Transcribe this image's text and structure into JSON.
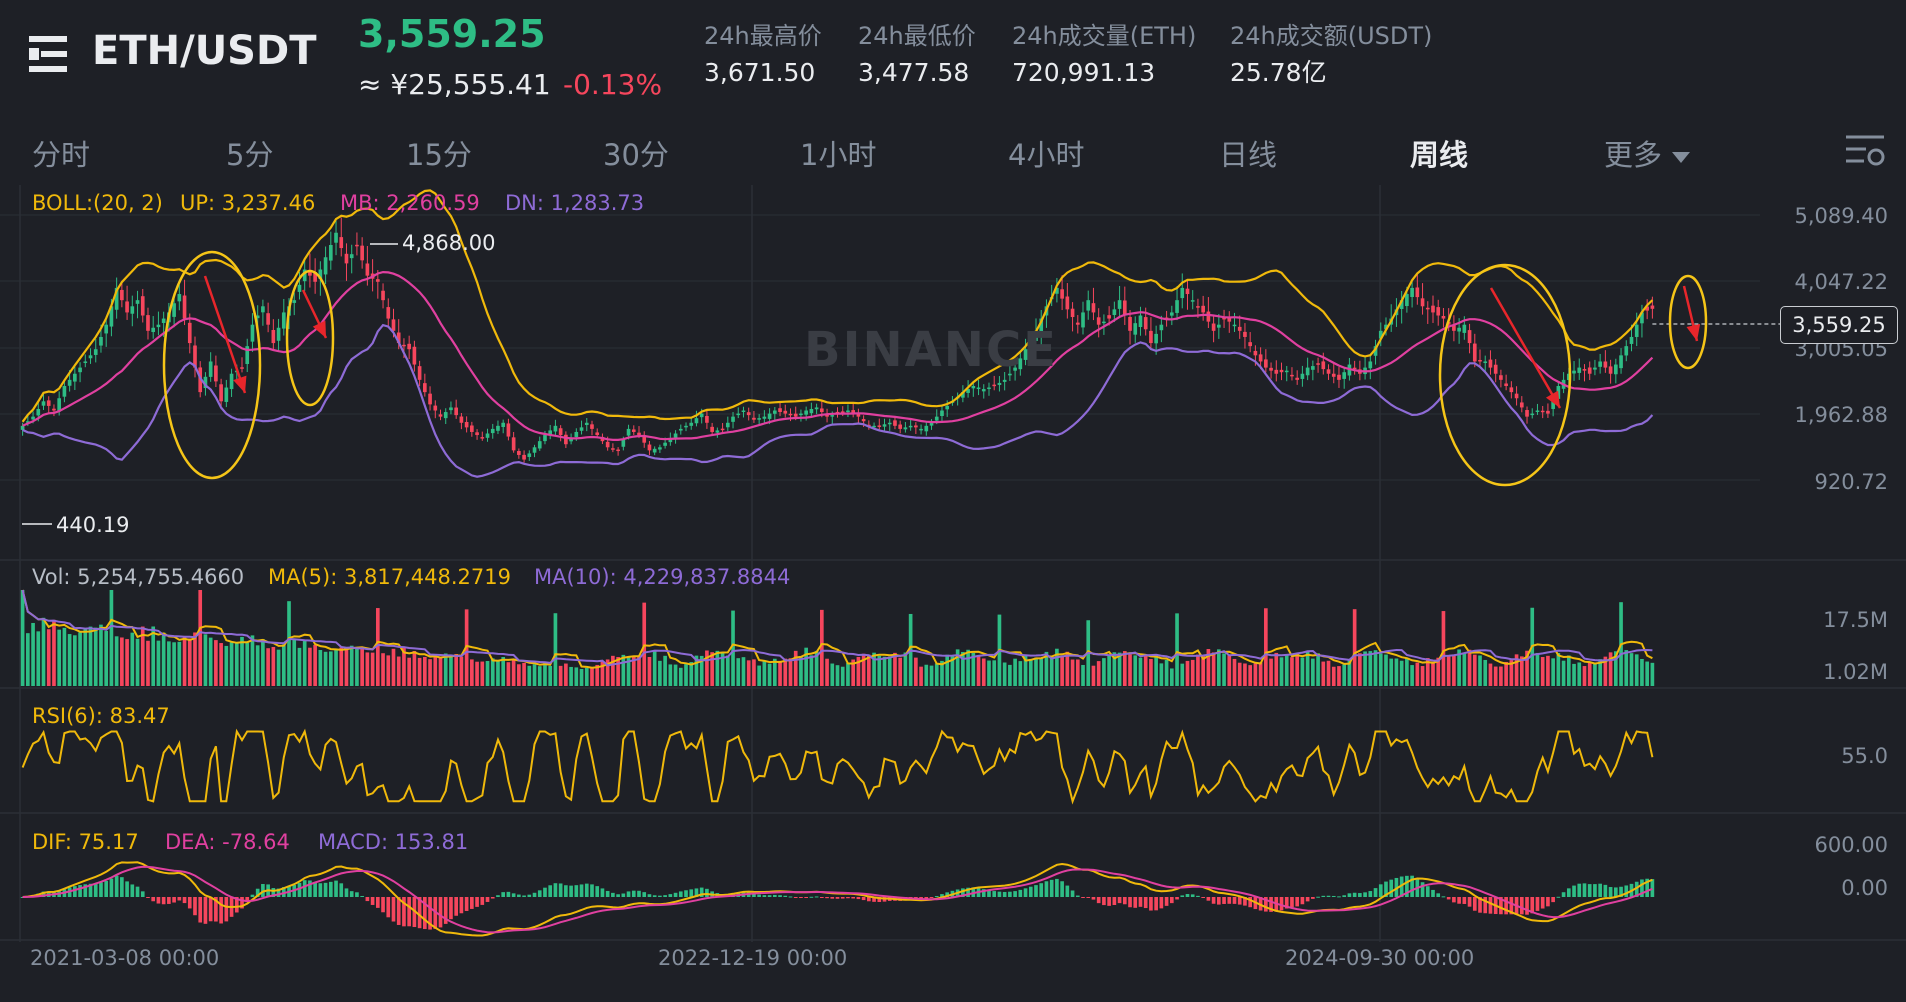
{
  "header": {
    "pair": "ETH/USDT",
    "last_price": "3,559.25",
    "cny_price": "≈ ¥25,555.41",
    "change_pct": "-0.13%",
    "stats": [
      {
        "label": "24h最高价",
        "value": "3,671.50"
      },
      {
        "label": "24h最低价",
        "value": "3,477.58"
      },
      {
        "label": "24h成交量(ETH)",
        "value": "720,991.13"
      },
      {
        "label": "24h成交额(USDT)",
        "value": "25.78亿"
      }
    ]
  },
  "tabs": [
    {
      "label": "分时",
      "active": false
    },
    {
      "label": "5分",
      "active": false
    },
    {
      "label": "15分",
      "active": false
    },
    {
      "label": "30分",
      "active": false
    },
    {
      "label": "1小时",
      "active": false
    },
    {
      "label": "4小时",
      "active": false
    },
    {
      "label": "日线",
      "active": false
    },
    {
      "label": "周线",
      "active": true
    },
    {
      "label": "更多",
      "active": false
    }
  ],
  "icons": {
    "menu": "menu-icon",
    "more": "chevron-down-icon",
    "settings": "chart-settings-icon"
  },
  "colors": {
    "up": "#2ebd85",
    "down": "#f6465d",
    "boll_up": "#f0b90b",
    "boll_mb": "#e040a0",
    "boll_dn": "#8e6bd6",
    "annotation_circle": "#f5c518",
    "annotation_arrow": "#e8262b"
  },
  "chart_data": {
    "type": "candlestick",
    "interval": "周线",
    "watermark": "BINANCE",
    "price_axis": [
      "5,089.40",
      "4,047.22",
      "3,005.05",
      "1,962.88",
      "920.72"
    ],
    "current_price_tag": "3,559.25",
    "high_marker": "4,868.00",
    "low_marker": "440.19",
    "boll": {
      "label": "BOLL:(20, 2)",
      "up": "UP: 3,237.46",
      "mb": "MB: 2,260.59",
      "dn": "DN: 1,283.73"
    },
    "volume": {
      "label": "Vol: 5,254,755.4660",
      "ma5": "MA(5): 3,817,448.2719",
      "ma10": "MA(10): 4,229,837.8844",
      "axis": [
        "17.5M",
        "1.02M"
      ]
    },
    "rsi": {
      "label": "RSI(6): 83.47",
      "axis": [
        "55.0"
      ]
    },
    "macd": {
      "dif": "DIF: 75.17",
      "dea": "DEA: -78.64",
      "macd": "MACD: 153.81",
      "axis": [
        "600.00",
        "0.00"
      ]
    },
    "x_axis_dates": [
      "2021-03-08 00:00",
      "2022-12-19 00:00",
      "2024-09-30 00:00"
    ],
    "price_anchors": [
      [
        0,
        1650
      ],
      [
        2,
        1800
      ],
      [
        4,
        2050
      ],
      [
        6,
        1900
      ],
      [
        8,
        2300
      ],
      [
        10,
        2500
      ],
      [
        12,
        2700
      ],
      [
        14,
        2900
      ],
      [
        16,
        3300
      ],
      [
        18,
        3900
      ],
      [
        20,
        3500
      ],
      [
        22,
        3700
      ],
      [
        24,
        3200
      ],
      [
        26,
        3300
      ],
      [
        28,
        3500
      ],
      [
        30,
        3800
      ],
      [
        32,
        3000
      ],
      [
        34,
        2200
      ],
      [
        36,
        2700
      ],
      [
        38,
        2050
      ],
      [
        40,
        2500
      ],
      [
        42,
        2600
      ],
      [
        44,
        3300
      ],
      [
        46,
        3600
      ],
      [
        48,
        3000
      ],
      [
        50,
        3500
      ],
      [
        52,
        3700
      ],
      [
        54,
        4200
      ],
      [
        56,
        4000
      ],
      [
        58,
        4400
      ],
      [
        60,
        4800
      ],
      [
        62,
        4300
      ],
      [
        64,
        4600
      ],
      [
        66,
        4100
      ],
      [
        68,
        4000
      ],
      [
        70,
        3400
      ],
      [
        72,
        3000
      ],
      [
        74,
        2900
      ],
      [
        76,
        2400
      ],
      [
        78,
        2000
      ],
      [
        80,
        1800
      ],
      [
        82,
        1950
      ],
      [
        84,
        1700
      ],
      [
        86,
        1550
      ],
      [
        88,
        1450
      ],
      [
        90,
        1600
      ],
      [
        92,
        1700
      ],
      [
        94,
        1250
      ],
      [
        96,
        1100
      ],
      [
        98,
        1300
      ],
      [
        100,
        1500
      ],
      [
        102,
        1650
      ],
      [
        104,
        1350
      ],
      [
        106,
        1550
      ],
      [
        108,
        1700
      ],
      [
        110,
        1500
      ],
      [
        112,
        1300
      ],
      [
        114,
        1250
      ],
      [
        116,
        1600
      ],
      [
        118,
        1500
      ],
      [
        120,
        1250
      ],
      [
        122,
        1300
      ],
      [
        124,
        1450
      ],
      [
        126,
        1600
      ],
      [
        128,
        1700
      ],
      [
        130,
        1850
      ],
      [
        132,
        1550
      ],
      [
        134,
        1600
      ],
      [
        136,
        1800
      ],
      [
        138,
        1900
      ],
      [
        140,
        1750
      ],
      [
        142,
        1800
      ],
      [
        144,
        1900
      ],
      [
        146,
        1850
      ],
      [
        148,
        1800
      ],
      [
        150,
        1900
      ],
      [
        152,
        1950
      ],
      [
        154,
        1800
      ],
      [
        156,
        1850
      ],
      [
        158,
        1900
      ],
      [
        160,
        1800
      ],
      [
        162,
        1650
      ],
      [
        164,
        1650
      ],
      [
        166,
        1700
      ],
      [
        168,
        1600
      ],
      [
        170,
        1650
      ],
      [
        172,
        1600
      ],
      [
        174,
        1700
      ],
      [
        176,
        1900
      ],
      [
        178,
        2050
      ],
      [
        180,
        2200
      ],
      [
        182,
        2300
      ],
      [
        184,
        2250
      ],
      [
        186,
        2300
      ],
      [
        188,
        2400
      ],
      [
        190,
        2600
      ],
      [
        192,
        2900
      ],
      [
        194,
        3200
      ],
      [
        196,
        3600
      ],
      [
        198,
        3900
      ],
      [
        200,
        3550
      ],
      [
        202,
        3300
      ],
      [
        204,
        3700
      ],
      [
        206,
        3300
      ],
      [
        208,
        3400
      ],
      [
        210,
        3700
      ],
      [
        212,
        3200
      ],
      [
        214,
        3450
      ],
      [
        216,
        3000
      ],
      [
        218,
        3300
      ],
      [
        220,
        3500
      ],
      [
        222,
        3900
      ],
      [
        224,
        3700
      ],
      [
        226,
        3500
      ],
      [
        228,
        3200
      ],
      [
        230,
        3400
      ],
      [
        232,
        3300
      ],
      [
        234,
        3100
      ],
      [
        236,
        2800
      ],
      [
        238,
        2600
      ],
      [
        240,
        2500
      ],
      [
        242,
        2550
      ],
      [
        244,
        2400
      ],
      [
        246,
        2600
      ],
      [
        248,
        2650
      ],
      [
        250,
        2500
      ],
      [
        252,
        2400
      ],
      [
        254,
        2650
      ],
      [
        256,
        2500
      ],
      [
        258,
        2700
      ],
      [
        260,
        3200
      ],
      [
        262,
        3400
      ],
      [
        264,
        3700
      ],
      [
        266,
        3900
      ],
      [
        268,
        3600
      ],
      [
        270,
        3500
      ],
      [
        272,
        3400
      ],
      [
        274,
        3200
      ],
      [
        276,
        3300
      ],
      [
        278,
        2700
      ],
      [
        280,
        2700
      ],
      [
        282,
        2500
      ],
      [
        284,
        2300
      ],
      [
        286,
        2100
      ],
      [
        288,
        1800
      ],
      [
        290,
        1900
      ],
      [
        292,
        1850
      ],
      [
        294,
        2300
      ],
      [
        296,
        2500
      ],
      [
        298,
        2600
      ],
      [
        300,
        2500
      ],
      [
        302,
        2700
      ],
      [
        304,
        2500
      ],
      [
        306,
        2800
      ],
      [
        308,
        3100
      ],
      [
        310,
        3500
      ],
      [
        312,
        3559
      ]
    ],
    "annotations": "circled tops with downward arrows"
  }
}
